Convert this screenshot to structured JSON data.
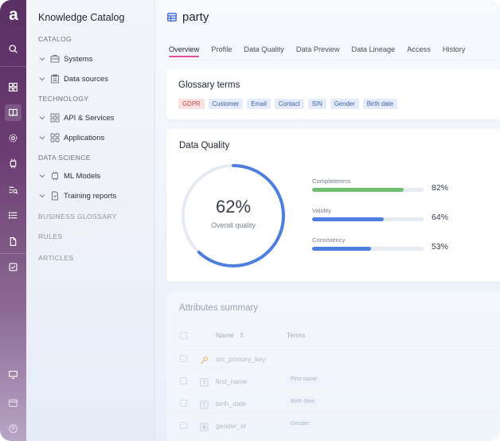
{
  "app": {
    "logo": "a"
  },
  "rail": {
    "icons": [
      "search-icon",
      "dashboard-icon",
      "book-icon",
      "gear-icon",
      "chip-icon",
      "query-icon",
      "list-icon",
      "document-icon",
      "checkbox-icon",
      "monitor-icon",
      "window-icon",
      "avatar-icon"
    ]
  },
  "nav": {
    "title": "Knowledge Catalog",
    "sections": {
      "catalog": "CATALOG",
      "technology": "TECHNOLOGY",
      "data_science": "DATA SCIENCE",
      "business_glossary": "BUSINESS GLOSSARY",
      "rules": "RULES",
      "articles": "ARTICLES"
    },
    "items": {
      "systems": "Systems",
      "data_sources": "Data sources",
      "api_services": "API & Services",
      "applications": "Applications",
      "ml_models": "ML Models",
      "training_reports": "Training reports"
    }
  },
  "page": {
    "title": "party"
  },
  "tabs": [
    "Overview",
    "Profile",
    "Data Quality",
    "Data Preview",
    "Data Lineage",
    "Access",
    "History"
  ],
  "glossary": {
    "title": "Glossary terms",
    "tags": [
      "GDPR",
      "Customer",
      "Email",
      "Contact",
      "SIN",
      "Gender",
      "Birth date"
    ]
  },
  "data_quality": {
    "title": "Data Quality",
    "overall_value": "62%",
    "overall_fraction": 0.62,
    "overall_label": "Overall quality",
    "metrics": [
      {
        "label": "Completeness",
        "value": "82%",
        "fraction": 0.82,
        "color": "#6cc070"
      },
      {
        "label": "Validity",
        "value": "64%",
        "fraction": 0.64,
        "color": "#4e7fdf"
      },
      {
        "label": "Consistency",
        "value": "53%",
        "fraction": 0.53,
        "color": "#4e7fdf"
      }
    ]
  },
  "attributes": {
    "title": "Attributes summary",
    "headers": {
      "name": "Name",
      "terms": "Terms"
    },
    "rows": [
      {
        "name": "src_primary_key",
        "term": ""
      },
      {
        "name": "first_name",
        "term": "First name"
      },
      {
        "name": "birth_date",
        "term": "Birth date"
      },
      {
        "name": "gender_id",
        "term": "Gender"
      }
    ]
  },
  "colors": {
    "accent": "#e0509a",
    "ring": "#4e7fdf",
    "rail": "#5a2f63"
  }
}
